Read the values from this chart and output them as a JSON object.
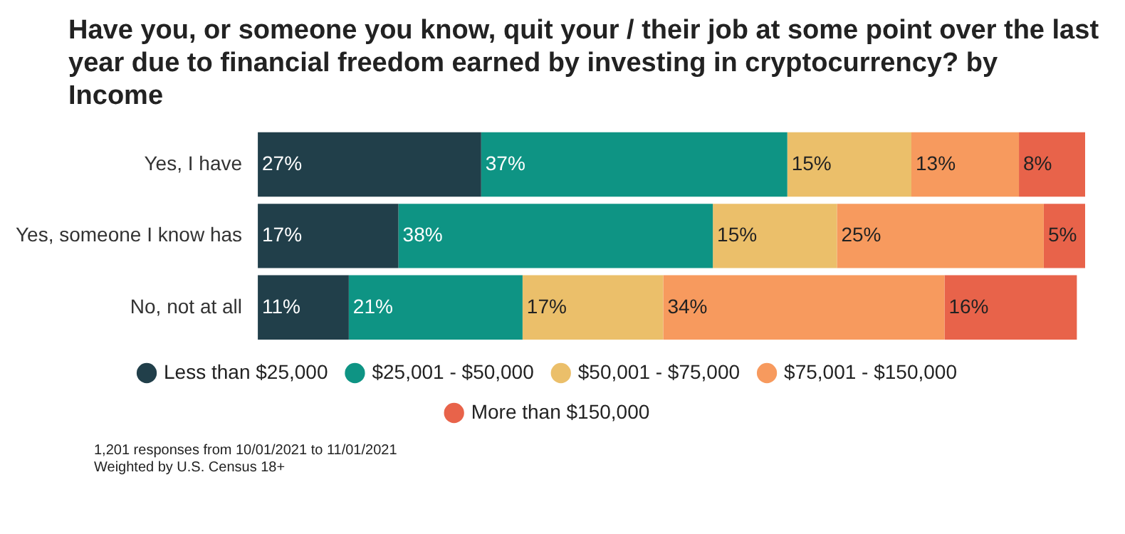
{
  "chart_data": {
    "type": "bar",
    "orientation": "horizontal",
    "stacked": true,
    "title": "Have you, or someone you know, quit your / their job at some point over the last year due to financial freedom earned by investing in cryptocurrency? by Income",
    "categories": [
      "Yes, I have",
      "Yes, someone I know has",
      "No, not at all"
    ],
    "series": [
      {
        "name": "Less than $25,000",
        "color": "#213f4a",
        "values": [
          27,
          17,
          11
        ],
        "value_labels": [
          "27%",
          "17%",
          "11%"
        ]
      },
      {
        "name": "$25,001 - $50,000",
        "color": "#0e9484",
        "values": [
          37,
          38,
          21
        ],
        "value_labels": [
          "37%",
          "38%",
          "21%"
        ]
      },
      {
        "name": "$50,001 - $75,000",
        "color": "#ebbf6a",
        "values": [
          15,
          15,
          17
        ],
        "value_labels": [
          "15%",
          "15%",
          "17%"
        ]
      },
      {
        "name": "$75,001 - $150,000",
        "color": "#f79a5e",
        "values": [
          13,
          25,
          34
        ],
        "value_labels": [
          "13%",
          "25%",
          "34%"
        ]
      },
      {
        "name": "More than $150,000",
        "color": "#e8634a",
        "values": [
          8,
          5,
          16
        ],
        "value_labels": [
          "8%",
          "5%",
          "16%"
        ]
      }
    ],
    "legend": "bottom",
    "tick_labels": "y",
    "annotations": [
      "1,201 responses from 10/01/2021 to 11/01/2021",
      "Weighted by U.S. Census 18+"
    ]
  }
}
